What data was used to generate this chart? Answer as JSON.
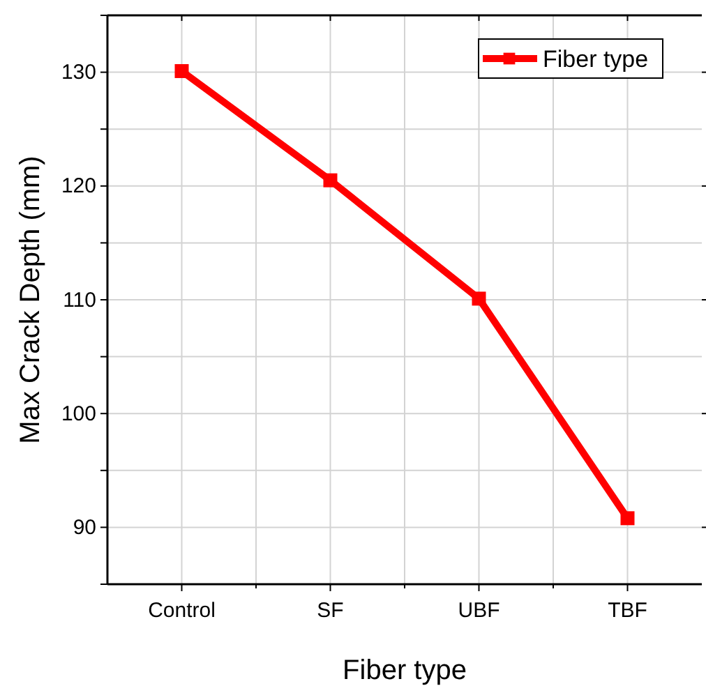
{
  "chart_data": {
    "type": "line",
    "xlabel": "Fiber type",
    "ylabel": "Max Crack Depth (mm)",
    "categories": [
      "Control",
      "SF",
      "UBF",
      "TBF"
    ],
    "series": [
      {
        "name": "Fiber type",
        "color": "#ff0000",
        "values": [
          130.1,
          120.5,
          110.1,
          90.8
        ]
      }
    ],
    "ylim": [
      85,
      135
    ],
    "yticks": [
      {
        "value": 85,
        "label": null
      },
      90,
      {
        "value": 95,
        "label": null
      },
      100,
      {
        "value": 105,
        "label": null
      },
      110,
      {
        "value": 115,
        "label": null
      },
      120,
      {
        "value": 125,
        "label": null
      },
      130,
      {
        "value": 135,
        "label": null
      }
    ],
    "grid": true,
    "legend": "top right",
    "marker": "square",
    "line_style": "solid"
  }
}
